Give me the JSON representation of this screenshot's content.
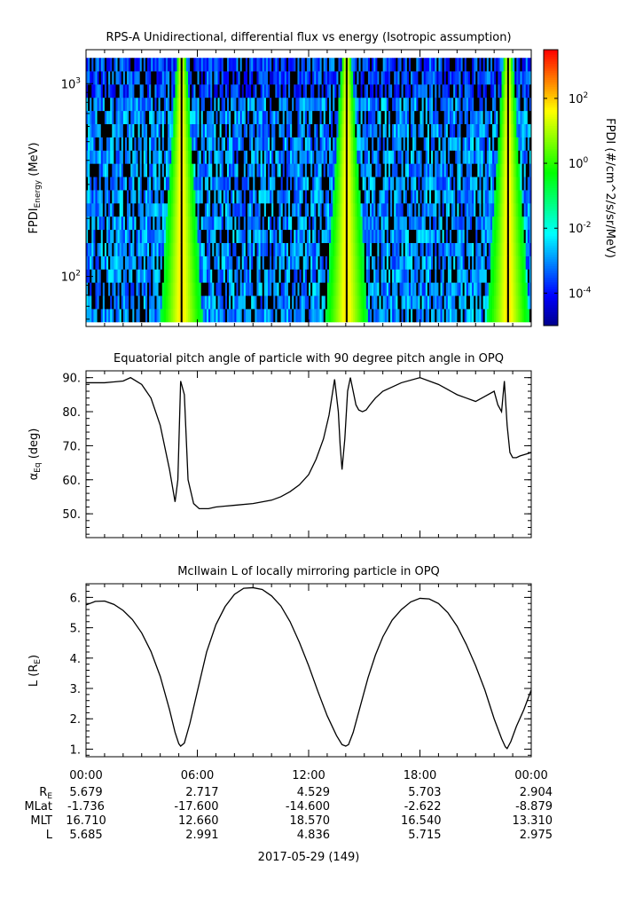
{
  "chart_data": [
    {
      "type": "heatmap",
      "title": "RPS-A Unidirectional, differential flux vs energy (Isotropic assumption)",
      "ylabel_main": "FPDI",
      "ylabel_sub": "Energy",
      "ylabel_unit": "(MeV)",
      "yscale": "log",
      "ylim": [
        55,
        1500
      ],
      "yticks": [
        {
          "value": 100,
          "base": "10",
          "exp": "2"
        },
        {
          "value": 1000,
          "base": "10",
          "exp": "3"
        }
      ],
      "colorbar": {
        "label": "FPDI (#/cm^2/s/sr/MeV)",
        "scale": "log",
        "range_exp": [
          -5,
          3.5
        ],
        "ticks": [
          {
            "exp": -4,
            "base": "10",
            "label": "-4"
          },
          {
            "exp": -2,
            "base": "10",
            "label": "-2"
          },
          {
            "exp": 0,
            "base": "10",
            "label": "0"
          },
          {
            "exp": 2,
            "base": "10",
            "label": "2"
          }
        ],
        "colors": [
          "#00008b",
          "#0000ff",
          "#007fff",
          "#00ffff",
          "#00ff7f",
          "#00ff00",
          "#7fff00",
          "#ffff00",
          "#ff7f00",
          "#ff0000"
        ]
      },
      "perigee_hours": [
        5.1,
        14.0,
        22.7
      ],
      "background_log_flux": -3
    },
    {
      "type": "line",
      "title": "Equatorial pitch angle of particle with 90 degree pitch angle in OPQ",
      "ylabel": "α",
      "ylabel_sub": "Eq",
      "ylabel_unit": "(deg)",
      "ylim": [
        43,
        92
      ],
      "yticks": [
        "50.",
        "60.",
        "70.",
        "80.",
        "90."
      ],
      "x": [
        0,
        1,
        2,
        2.4,
        3,
        3.5,
        4,
        4.5,
        4.8,
        4.95,
        5.1,
        5.3,
        5.5,
        5.8,
        6.1,
        6.6,
        7,
        8,
        9,
        10,
        10.5,
        11,
        11.5,
        12,
        12.4,
        12.8,
        13.1,
        13.4,
        13.6,
        13.7,
        13.8,
        13.95,
        14.1,
        14.25,
        14.4,
        14.55,
        14.7,
        14.9,
        15.1,
        15.3,
        15.6,
        16,
        17,
        18,
        19,
        19.5,
        20,
        20.5,
        21,
        21.5,
        22,
        22.2,
        22.4,
        22.55,
        22.7,
        22.85,
        23,
        23.2,
        23.4,
        23.7,
        24
      ],
      "y": [
        88.5,
        88.5,
        89.0,
        90.0,
        88.0,
        84.0,
        76.0,
        63.0,
        53.5,
        60.0,
        89.0,
        85.0,
        60.0,
        53.0,
        51.5,
        51.5,
        52.0,
        52.5,
        53.0,
        54.0,
        55.0,
        56.5,
        58.5,
        61.5,
        66.0,
        72.0,
        79.0,
        89.5,
        80.0,
        70.0,
        63.0,
        72.0,
        86.0,
        90.0,
        86.0,
        82.0,
        80.5,
        80.0,
        80.5,
        82.0,
        84.0,
        86.0,
        88.5,
        90.0,
        88.0,
        86.5,
        85.0,
        84.0,
        83.0,
        84.5,
        86.0,
        82.0,
        80.0,
        89.0,
        76.0,
        68.0,
        66.5,
        66.5,
        67.0,
        67.5,
        68.0
      ]
    },
    {
      "type": "line",
      "title": "McIlwain L of locally mirroring particle in OPQ",
      "ylabel": "L (R",
      "ylabel_sub": "E",
      "ylabel_unit": ")",
      "ylim": [
        0.75,
        6.45
      ],
      "yticks": [
        "1.",
        "2.",
        "3.",
        "4.",
        "5.",
        "6."
      ],
      "x": [
        0,
        0.5,
        1,
        1.5,
        2,
        2.5,
        3,
        3.5,
        4,
        4.5,
        4.8,
        5.0,
        5.1,
        5.3,
        5.6,
        6,
        6.5,
        7,
        7.5,
        8,
        8.5,
        9,
        9.5,
        10,
        10.5,
        11,
        11.5,
        12,
        12.5,
        13,
        13.5,
        13.8,
        14.0,
        14.15,
        14.4,
        14.8,
        15.2,
        15.6,
        16,
        16.5,
        17,
        17.5,
        18,
        18.5,
        19,
        19.5,
        20,
        20.5,
        21,
        21.5,
        22,
        22.4,
        22.6,
        22.7,
        22.9,
        23.2,
        23.6,
        24
      ],
      "y": [
        5.75,
        5.87,
        5.88,
        5.77,
        5.57,
        5.27,
        4.83,
        4.22,
        3.4,
        2.3,
        1.55,
        1.18,
        1.1,
        1.2,
        1.85,
        2.9,
        4.2,
        5.1,
        5.7,
        6.1,
        6.3,
        6.32,
        6.26,
        6.05,
        5.72,
        5.2,
        4.52,
        3.75,
        2.9,
        2.1,
        1.45,
        1.15,
        1.1,
        1.15,
        1.55,
        2.45,
        3.35,
        4.1,
        4.7,
        5.25,
        5.6,
        5.85,
        5.97,
        5.95,
        5.8,
        5.5,
        5.05,
        4.45,
        3.75,
        2.95,
        2.0,
        1.35,
        1.08,
        1.02,
        1.25,
        1.75,
        2.3,
        2.95
      ]
    }
  ],
  "x_axis": {
    "xlim_hours": [
      0,
      24
    ],
    "tick_labels": [
      "00:00",
      "06:00",
      "12:00",
      "18:00",
      "00:00"
    ],
    "date_label": "2017-05-29 (149)"
  },
  "ephemeris": {
    "rows": [
      {
        "name": "R",
        "sub": "E",
        "values": [
          "5.679",
          "2.717",
          "4.529",
          "5.703",
          "2.904"
        ]
      },
      {
        "name": "MLat",
        "sub": "",
        "values": [
          "-1.736",
          "-17.600",
          "-14.600",
          "-2.622",
          "-8.879"
        ]
      },
      {
        "name": "MLT",
        "sub": "",
        "values": [
          "16.710",
          "12.660",
          "18.570",
          "16.540",
          "13.310"
        ]
      },
      {
        "name": "L",
        "sub": "",
        "values": [
          "5.685",
          "2.991",
          "4.836",
          "5.715",
          "2.975"
        ]
      }
    ]
  }
}
